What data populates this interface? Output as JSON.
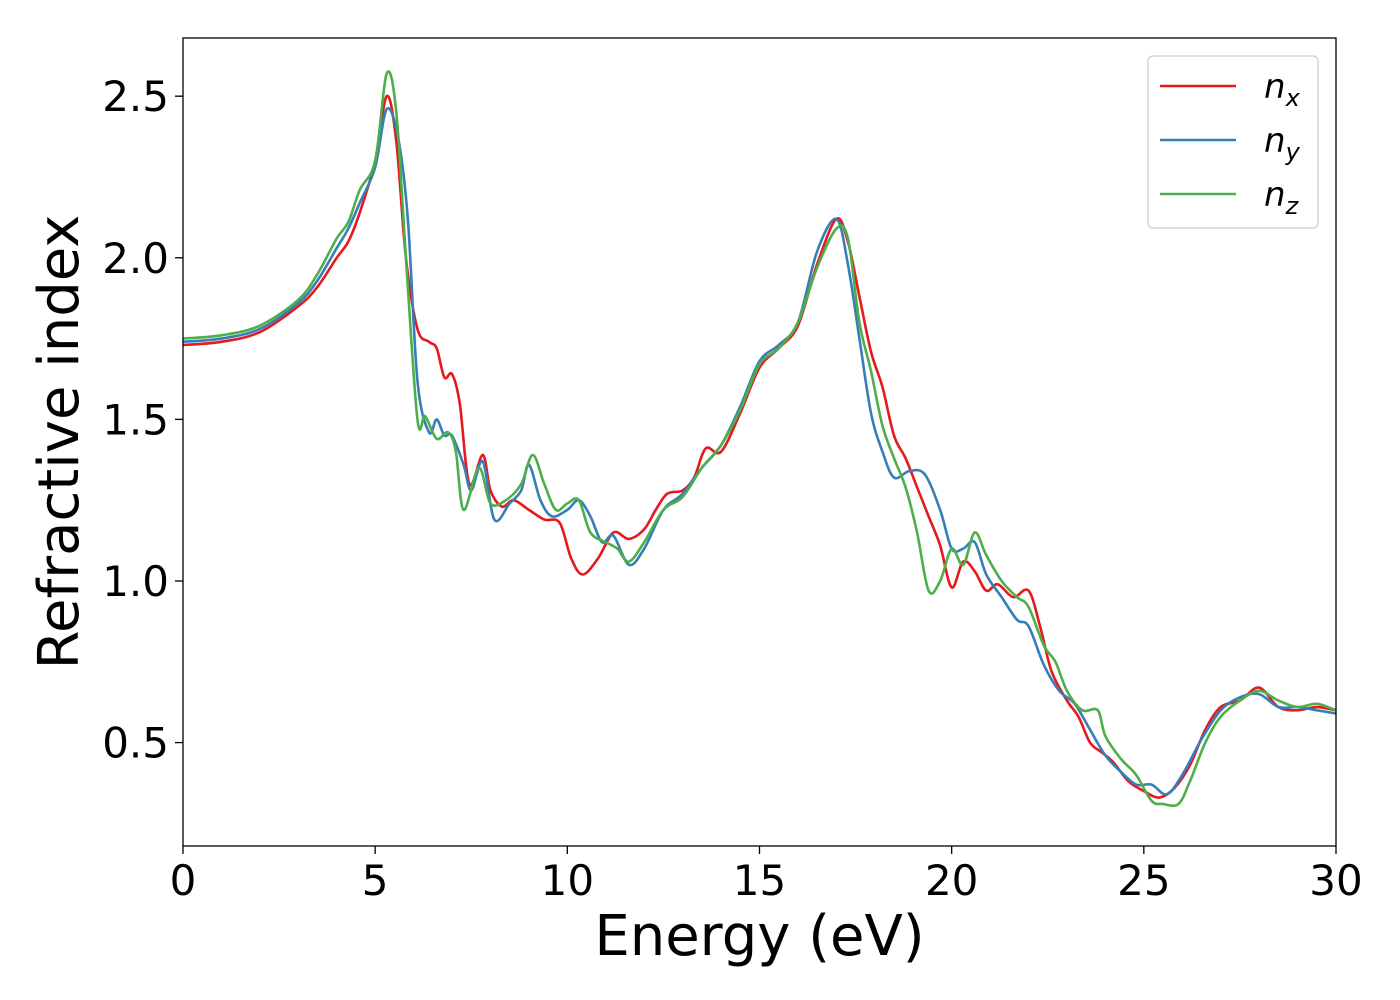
{
  "chart_data": {
    "type": "line",
    "title": "",
    "xlabel": "Energy (eV)",
    "ylabel": "Refractive index",
    "xlim": [
      0,
      30
    ],
    "ylim": [
      0.18,
      2.68
    ],
    "x_ticks": [
      0,
      5,
      10,
      15,
      20,
      25,
      30
    ],
    "x_tick_labels": [
      "0",
      "5",
      "10",
      "15",
      "20",
      "25",
      "30"
    ],
    "y_ticks": [
      0.5,
      1.0,
      1.5,
      2.0,
      2.5
    ],
    "y_tick_labels": [
      "0.5",
      "1.0",
      "1.5",
      "2.0",
      "2.5"
    ],
    "grid": false,
    "legend_position": "top-right",
    "series": [
      {
        "name": "n",
        "subscript": "x",
        "color": "#e41a1c",
        "points": [
          [
            0,
            1.73
          ],
          [
            1,
            1.74
          ],
          [
            2,
            1.77
          ],
          [
            3,
            1.85
          ],
          [
            3.5,
            1.91
          ],
          [
            4,
            2.0
          ],
          [
            4.3,
            2.05
          ],
          [
            4.6,
            2.14
          ],
          [
            5.0,
            2.3
          ],
          [
            5.3,
            2.5
          ],
          [
            5.55,
            2.36
          ],
          [
            5.8,
            2.0
          ],
          [
            6.1,
            1.78
          ],
          [
            6.4,
            1.74
          ],
          [
            6.6,
            1.72
          ],
          [
            6.8,
            1.63
          ],
          [
            7.0,
            1.64
          ],
          [
            7.2,
            1.55
          ],
          [
            7.45,
            1.3
          ],
          [
            7.8,
            1.39
          ],
          [
            8.0,
            1.28
          ],
          [
            8.3,
            1.23
          ],
          [
            8.6,
            1.25
          ],
          [
            9.0,
            1.22
          ],
          [
            9.4,
            1.19
          ],
          [
            9.8,
            1.18
          ],
          [
            10.1,
            1.07
          ],
          [
            10.4,
            1.02
          ],
          [
            10.8,
            1.07
          ],
          [
            11.2,
            1.15
          ],
          [
            11.6,
            1.13
          ],
          [
            12.0,
            1.16
          ],
          [
            12.3,
            1.22
          ],
          [
            12.6,
            1.27
          ],
          [
            13.0,
            1.28
          ],
          [
            13.3,
            1.32
          ],
          [
            13.6,
            1.41
          ],
          [
            14.0,
            1.4
          ],
          [
            14.5,
            1.52
          ],
          [
            15.0,
            1.66
          ],
          [
            15.5,
            1.72
          ],
          [
            16.0,
            1.79
          ],
          [
            16.5,
            1.98
          ],
          [
            17.0,
            2.12
          ],
          [
            17.3,
            2.05
          ],
          [
            17.6,
            1.88
          ],
          [
            17.9,
            1.71
          ],
          [
            18.2,
            1.6
          ],
          [
            18.5,
            1.45
          ],
          [
            18.8,
            1.38
          ],
          [
            19.1,
            1.29
          ],
          [
            19.4,
            1.2
          ],
          [
            19.7,
            1.11
          ],
          [
            20.0,
            0.98
          ],
          [
            20.3,
            1.06
          ],
          [
            20.6,
            1.03
          ],
          [
            20.9,
            0.97
          ],
          [
            21.2,
            0.99
          ],
          [
            21.6,
            0.95
          ],
          [
            22.0,
            0.97
          ],
          [
            22.3,
            0.86
          ],
          [
            22.6,
            0.72
          ],
          [
            23.0,
            0.63
          ],
          [
            23.3,
            0.58
          ],
          [
            23.6,
            0.5
          ],
          [
            23.9,
            0.47
          ],
          [
            24.2,
            0.44
          ],
          [
            24.6,
            0.38
          ],
          [
            25.0,
            0.35
          ],
          [
            25.4,
            0.33
          ],
          [
            25.8,
            0.36
          ],
          [
            26.2,
            0.43
          ],
          [
            26.6,
            0.54
          ],
          [
            27.0,
            0.61
          ],
          [
            27.5,
            0.63
          ],
          [
            28.0,
            0.67
          ],
          [
            28.5,
            0.61
          ],
          [
            29.0,
            0.6
          ],
          [
            29.5,
            0.61
          ],
          [
            30.0,
            0.6
          ]
        ]
      },
      {
        "name": "n",
        "subscript": "y",
        "color": "#377eb8",
        "points": [
          [
            0,
            1.74
          ],
          [
            1,
            1.75
          ],
          [
            2,
            1.78
          ],
          [
            3,
            1.86
          ],
          [
            3.5,
            1.93
          ],
          [
            4,
            2.03
          ],
          [
            4.3,
            2.09
          ],
          [
            4.6,
            2.17
          ],
          [
            5.0,
            2.28
          ],
          [
            5.3,
            2.46
          ],
          [
            5.6,
            2.37
          ],
          [
            5.85,
            2.12
          ],
          [
            6.1,
            1.62
          ],
          [
            6.4,
            1.46
          ],
          [
            6.6,
            1.5
          ],
          [
            6.8,
            1.45
          ],
          [
            7.0,
            1.45
          ],
          [
            7.3,
            1.36
          ],
          [
            7.5,
            1.28
          ],
          [
            7.8,
            1.37
          ],
          [
            8.1,
            1.19
          ],
          [
            8.5,
            1.24
          ],
          [
            8.8,
            1.28
          ],
          [
            9.0,
            1.36
          ],
          [
            9.3,
            1.25
          ],
          [
            9.6,
            1.2
          ],
          [
            10.0,
            1.22
          ],
          [
            10.3,
            1.25
          ],
          [
            10.6,
            1.2
          ],
          [
            10.9,
            1.12
          ],
          [
            11.2,
            1.14
          ],
          [
            11.6,
            1.05
          ],
          [
            12.0,
            1.1
          ],
          [
            12.5,
            1.22
          ],
          [
            13.0,
            1.27
          ],
          [
            13.5,
            1.35
          ],
          [
            14.0,
            1.42
          ],
          [
            14.5,
            1.54
          ],
          [
            15.0,
            1.68
          ],
          [
            15.5,
            1.73
          ],
          [
            16.0,
            1.8
          ],
          [
            16.5,
            2.02
          ],
          [
            17.0,
            2.12
          ],
          [
            17.3,
            1.98
          ],
          [
            17.6,
            1.75
          ],
          [
            17.9,
            1.52
          ],
          [
            18.2,
            1.4
          ],
          [
            18.5,
            1.32
          ],
          [
            18.9,
            1.34
          ],
          [
            19.3,
            1.33
          ],
          [
            19.7,
            1.22
          ],
          [
            20.0,
            1.1
          ],
          [
            20.3,
            1.1
          ],
          [
            20.6,
            1.12
          ],
          [
            20.9,
            1.02
          ],
          [
            21.3,
            0.95
          ],
          [
            21.7,
            0.88
          ],
          [
            22.0,
            0.86
          ],
          [
            22.4,
            0.74
          ],
          [
            22.8,
            0.66
          ],
          [
            23.2,
            0.62
          ],
          [
            23.6,
            0.54
          ],
          [
            24.0,
            0.46
          ],
          [
            24.4,
            0.41
          ],
          [
            24.8,
            0.37
          ],
          [
            25.2,
            0.37
          ],
          [
            25.6,
            0.34
          ],
          [
            26.0,
            0.4
          ],
          [
            26.5,
            0.51
          ],
          [
            27.0,
            0.6
          ],
          [
            27.5,
            0.64
          ],
          [
            28.0,
            0.65
          ],
          [
            28.5,
            0.61
          ],
          [
            29.0,
            0.61
          ],
          [
            29.5,
            0.6
          ],
          [
            30.0,
            0.59
          ]
        ]
      },
      {
        "name": "n",
        "subscript": "z",
        "color": "#4daf4a",
        "points": [
          [
            0,
            1.75
          ],
          [
            1,
            1.76
          ],
          [
            2,
            1.79
          ],
          [
            3,
            1.87
          ],
          [
            3.5,
            1.95
          ],
          [
            4,
            2.06
          ],
          [
            4.3,
            2.11
          ],
          [
            4.6,
            2.21
          ],
          [
            5.0,
            2.3
          ],
          [
            5.3,
            2.57
          ],
          [
            5.55,
            2.45
          ],
          [
            5.8,
            2.0
          ],
          [
            6.1,
            1.5
          ],
          [
            6.3,
            1.51
          ],
          [
            6.6,
            1.44
          ],
          [
            6.9,
            1.46
          ],
          [
            7.1,
            1.4
          ],
          [
            7.3,
            1.22
          ],
          [
            7.7,
            1.35
          ],
          [
            8.0,
            1.24
          ],
          [
            8.4,
            1.25
          ],
          [
            8.8,
            1.3
          ],
          [
            9.1,
            1.39
          ],
          [
            9.4,
            1.3
          ],
          [
            9.7,
            1.22
          ],
          [
            10.0,
            1.24
          ],
          [
            10.3,
            1.25
          ],
          [
            10.6,
            1.15
          ],
          [
            11.0,
            1.12
          ],
          [
            11.3,
            1.1
          ],
          [
            11.6,
            1.06
          ],
          [
            12.0,
            1.12
          ],
          [
            12.5,
            1.22
          ],
          [
            13.0,
            1.26
          ],
          [
            13.5,
            1.35
          ],
          [
            14.0,
            1.42
          ],
          [
            14.5,
            1.53
          ],
          [
            15.0,
            1.67
          ],
          [
            15.5,
            1.72
          ],
          [
            16.0,
            1.8
          ],
          [
            16.5,
            1.97
          ],
          [
            17.0,
            2.09
          ],
          [
            17.3,
            2.06
          ],
          [
            17.6,
            1.8
          ],
          [
            17.9,
            1.65
          ],
          [
            18.2,
            1.48
          ],
          [
            18.5,
            1.38
          ],
          [
            18.8,
            1.29
          ],
          [
            19.1,
            1.15
          ],
          [
            19.4,
            0.97
          ],
          [
            19.7,
            1.0
          ],
          [
            20.0,
            1.1
          ],
          [
            20.3,
            1.05
          ],
          [
            20.6,
            1.15
          ],
          [
            20.9,
            1.08
          ],
          [
            21.3,
            1.0
          ],
          [
            21.7,
            0.95
          ],
          [
            22.0,
            0.92
          ],
          [
            22.4,
            0.8
          ],
          [
            22.7,
            0.75
          ],
          [
            23.0,
            0.66
          ],
          [
            23.4,
            0.6
          ],
          [
            23.8,
            0.6
          ],
          [
            24.0,
            0.52
          ],
          [
            24.4,
            0.45
          ],
          [
            24.8,
            0.4
          ],
          [
            25.2,
            0.32
          ],
          [
            25.5,
            0.31
          ],
          [
            25.9,
            0.31
          ],
          [
            26.2,
            0.38
          ],
          [
            26.6,
            0.5
          ],
          [
            27.0,
            0.58
          ],
          [
            27.5,
            0.63
          ],
          [
            28.0,
            0.66
          ],
          [
            28.5,
            0.63
          ],
          [
            29.0,
            0.61
          ],
          [
            29.5,
            0.62
          ],
          [
            30.0,
            0.6
          ]
        ]
      }
    ]
  }
}
